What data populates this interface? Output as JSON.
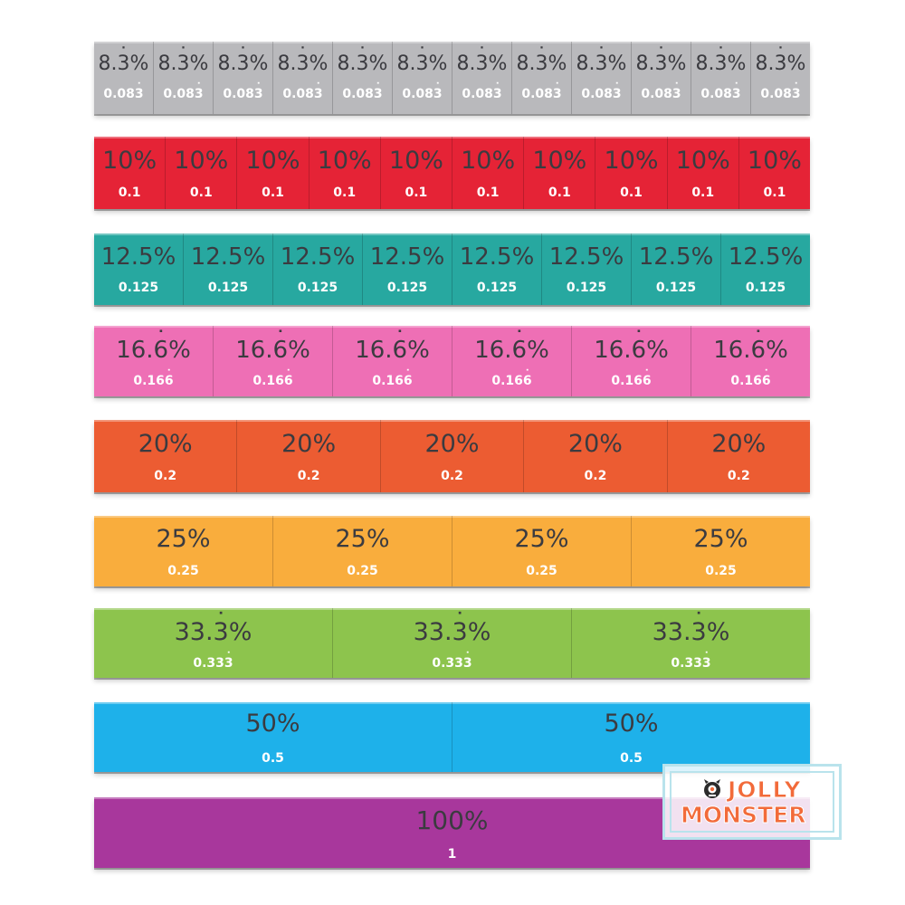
{
  "rows": [
    {
      "id": "row-12",
      "name": "twelfths",
      "color": "#b9b9bc",
      "cells": [
        {
          "pct": "8.3%",
          "dec": "0.083",
          "pct_dot": 2,
          "dec_dot": 4
        },
        {
          "pct": "8.3%",
          "dec": "0.083",
          "pct_dot": 2,
          "dec_dot": 4
        },
        {
          "pct": "8.3%",
          "dec": "0.083",
          "pct_dot": 2,
          "dec_dot": 4
        },
        {
          "pct": "8.3%",
          "dec": "0.083",
          "pct_dot": 2,
          "dec_dot": 4
        },
        {
          "pct": "8.3%",
          "dec": "0.083",
          "pct_dot": 2,
          "dec_dot": 4
        },
        {
          "pct": "8.3%",
          "dec": "0.083",
          "pct_dot": 2,
          "dec_dot": 4
        },
        {
          "pct": "8.3%",
          "dec": "0.083",
          "pct_dot": 2,
          "dec_dot": 4
        },
        {
          "pct": "8.3%",
          "dec": "0.083",
          "pct_dot": 2,
          "dec_dot": 4
        },
        {
          "pct": "8.3%",
          "dec": "0.083",
          "pct_dot": 2,
          "dec_dot": 4
        },
        {
          "pct": "8.3%",
          "dec": "0.083",
          "pct_dot": 2,
          "dec_dot": 4
        },
        {
          "pct": "8.3%",
          "dec": "0.083",
          "pct_dot": 2,
          "dec_dot": 4
        },
        {
          "pct": "8.3%",
          "dec": "0.083",
          "pct_dot": 2,
          "dec_dot": 4
        }
      ]
    },
    {
      "id": "row-10",
      "name": "tenths",
      "color": "#e52336",
      "cells": [
        {
          "pct": "10%",
          "dec": "0.1"
        },
        {
          "pct": "10%",
          "dec": "0.1"
        },
        {
          "pct": "10%",
          "dec": "0.1"
        },
        {
          "pct": "10%",
          "dec": "0.1"
        },
        {
          "pct": "10%",
          "dec": "0.1"
        },
        {
          "pct": "10%",
          "dec": "0.1"
        },
        {
          "pct": "10%",
          "dec": "0.1"
        },
        {
          "pct": "10%",
          "dec": "0.1"
        },
        {
          "pct": "10%",
          "dec": "0.1"
        },
        {
          "pct": "10%",
          "dec": "0.1"
        }
      ]
    },
    {
      "id": "row-8",
      "name": "eighths",
      "color": "#27a8a0",
      "cells": [
        {
          "pct": "12.5%",
          "dec": "0.125"
        },
        {
          "pct": "12.5%",
          "dec": "0.125"
        },
        {
          "pct": "12.5%",
          "dec": "0.125"
        },
        {
          "pct": "12.5%",
          "dec": "0.125"
        },
        {
          "pct": "12.5%",
          "dec": "0.125"
        },
        {
          "pct": "12.5%",
          "dec": "0.125"
        },
        {
          "pct": "12.5%",
          "dec": "0.125"
        },
        {
          "pct": "12.5%",
          "dec": "0.125"
        }
      ]
    },
    {
      "id": "row-6",
      "name": "sixths",
      "color": "#ee6fb5",
      "cells": [
        {
          "pct": "16.6%",
          "dec": "0.166",
          "pct_dot": 3,
          "dec_dot": 4
        },
        {
          "pct": "16.6%",
          "dec": "0.166",
          "pct_dot": 3,
          "dec_dot": 4
        },
        {
          "pct": "16.6%",
          "dec": "0.166",
          "pct_dot": 3,
          "dec_dot": 4
        },
        {
          "pct": "16.6%",
          "dec": "0.166",
          "pct_dot": 3,
          "dec_dot": 4
        },
        {
          "pct": "16.6%",
          "dec": "0.166",
          "pct_dot": 3,
          "dec_dot": 4
        },
        {
          "pct": "16.6%",
          "dec": "0.166",
          "pct_dot": 3,
          "dec_dot": 4
        }
      ]
    },
    {
      "id": "row-5",
      "name": "fifths",
      "color": "#ec5c32",
      "cells": [
        {
          "pct": "20%",
          "dec": "0.2"
        },
        {
          "pct": "20%",
          "dec": "0.2"
        },
        {
          "pct": "20%",
          "dec": "0.2"
        },
        {
          "pct": "20%",
          "dec": "0.2"
        },
        {
          "pct": "20%",
          "dec": "0.2"
        }
      ]
    },
    {
      "id": "row-4",
      "name": "quarters",
      "color": "#f9ad3d",
      "cells": [
        {
          "pct": "25%",
          "dec": "0.25"
        },
        {
          "pct": "25%",
          "dec": "0.25"
        },
        {
          "pct": "25%",
          "dec": "0.25"
        },
        {
          "pct": "25%",
          "dec": "0.25"
        }
      ]
    },
    {
      "id": "row-3",
      "name": "thirds",
      "color": "#8dc44d",
      "cells": [
        {
          "pct": "33.3%",
          "dec": "0.333",
          "pct_dot": 3,
          "dec_dot": 4
        },
        {
          "pct": "33.3%",
          "dec": "0.333",
          "pct_dot": 3,
          "dec_dot": 4
        },
        {
          "pct": "33.3%",
          "dec": "0.333",
          "pct_dot": 3,
          "dec_dot": 4
        }
      ]
    },
    {
      "id": "row-2",
      "name": "halves",
      "color": "#1eb1ea",
      "cells": [
        {
          "pct": "50%",
          "dec": "0.5"
        },
        {
          "pct": "50%",
          "dec": "0.5"
        }
      ]
    },
    {
      "id": "row-1",
      "name": "whole",
      "color": "#a8379c",
      "cells": [
        {
          "pct": "100%",
          "dec": "1"
        }
      ]
    }
  ],
  "logo": {
    "line1": "JOLLY",
    "line2": "MONSTER",
    "text_color": "#f26b3a",
    "frame_color": "#b9e3ec",
    "mascot": "monster-mascot-icon"
  }
}
